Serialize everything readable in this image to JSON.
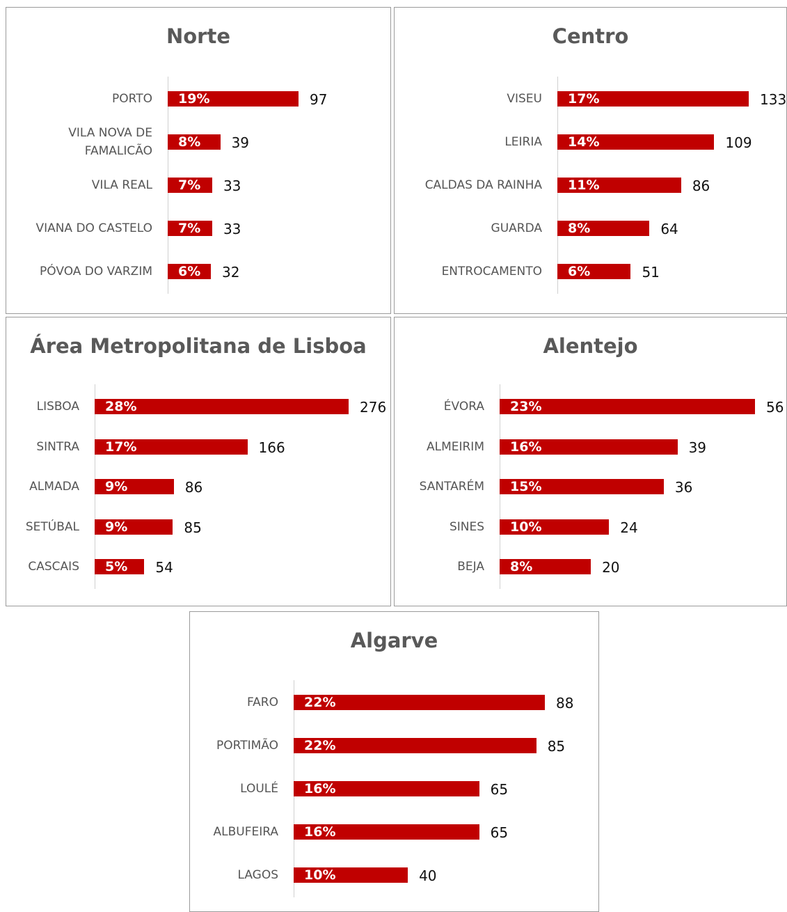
{
  "chart_data": [
    {
      "type": "bar",
      "orientation": "horizontal",
      "title": "Norte",
      "color": "#c00000",
      "categories": [
        "PORTO",
        "VILA NOVA DE FAMALICÃO",
        "VILA REAL",
        "VIANA DO CASTELO",
        "PÓVOA DO VARZIM"
      ],
      "values": [
        97,
        39,
        33,
        33,
        32
      ],
      "percent_labels": [
        "19%",
        "8%",
        "7%",
        "7%",
        "6%"
      ]
    },
    {
      "type": "bar",
      "orientation": "horizontal",
      "title": "Centro",
      "color": "#c00000",
      "categories": [
        "VISEU",
        "LEIRIA",
        "CALDAS DA RAINHA",
        "GUARDA",
        "ENTROCAMENTO"
      ],
      "values": [
        133,
        109,
        86,
        64,
        51
      ],
      "percent_labels": [
        "17%",
        "14%",
        "11%",
        "8%",
        "6%"
      ]
    },
    {
      "type": "bar",
      "orientation": "horizontal",
      "title": "Área Metropolitana de Lisboa",
      "color": "#c00000",
      "categories": [
        "LISBOA",
        "SINTRA",
        "ALMADA",
        "SETÚBAL",
        "CASCAIS"
      ],
      "values": [
        276,
        166,
        86,
        85,
        54
      ],
      "percent_labels": [
        "28%",
        "17%",
        "9%",
        "9%",
        "5%"
      ]
    },
    {
      "type": "bar",
      "orientation": "horizontal",
      "title": "Alentejo",
      "color": "#c00000",
      "categories": [
        "ÉVORA",
        "ALMEIRIM",
        "SANTARÉM",
        "SINES",
        "BEJA"
      ],
      "values": [
        56,
        39,
        36,
        24,
        20
      ],
      "percent_labels": [
        "23%",
        "16%",
        "15%",
        "10%",
        "8%"
      ]
    },
    {
      "type": "bar",
      "orientation": "horizontal",
      "title": "Algarve",
      "color": "#c00000",
      "categories": [
        "FARO",
        "PORTIMÃO",
        "LOULÉ",
        "ALBUFEIRA",
        "LAGOS"
      ],
      "values": [
        88,
        85,
        65,
        65,
        40
      ],
      "percent_labels": [
        "22%",
        "22%",
        "16%",
        "16%",
        "10%"
      ]
    }
  ]
}
